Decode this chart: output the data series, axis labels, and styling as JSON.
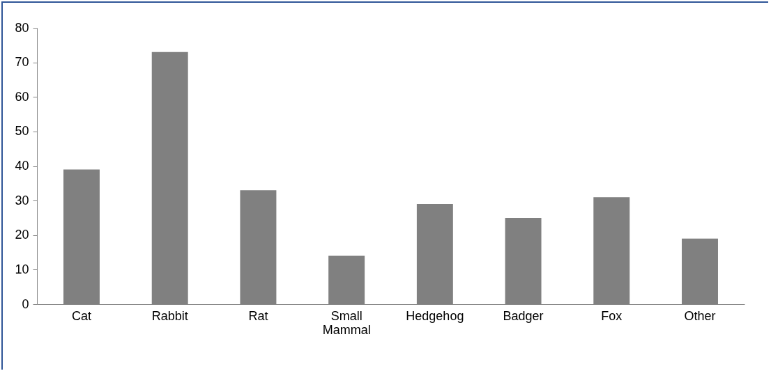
{
  "chart_data": {
    "type": "bar",
    "categories": [
      "Cat",
      "Rabbit",
      "Rat",
      "Small Mammal",
      "Hedgehog",
      "Badger",
      "Fox",
      "Other"
    ],
    "values": [
      39,
      73,
      33,
      14,
      29,
      25,
      31,
      19
    ],
    "color": "#808080",
    "ylim": [
      0,
      80
    ],
    "yticks": [
      0,
      10,
      20,
      30,
      40,
      50,
      60,
      70,
      80
    ],
    "grid": false
  }
}
